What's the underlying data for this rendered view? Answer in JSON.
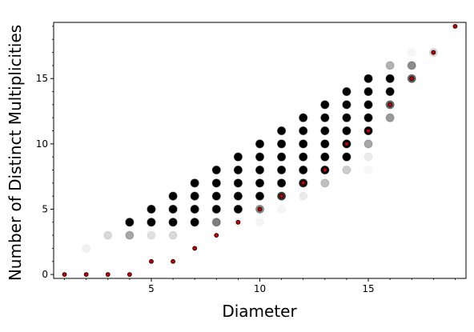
{
  "chart_data": {
    "type": "scatter",
    "title": "",
    "xlabel": "Diameter",
    "ylabel": "Number of Distinct Multiplicities",
    "xlim": [
      0.5,
      19.5
    ],
    "ylim": [
      -0.3,
      19.3
    ],
    "x_major_ticks": [
      5,
      10,
      15
    ],
    "y_major_ticks": [
      0,
      5,
      10,
      15
    ],
    "grid": false,
    "legend": "none",
    "colors": {
      "gray_marker": "#000000",
      "gray_marker_edge": "#000000",
      "red_marker_fill": "#cc0000",
      "red_marker_edge": "#000000"
    },
    "gray_points": [
      {
        "x": 2,
        "y": 2,
        "o": 0.06
      },
      {
        "x": 3,
        "y": 3,
        "o": 0.15
      },
      {
        "x": 4,
        "y": 3,
        "o": 0.35
      },
      {
        "x": 4,
        "y": 4,
        "o": 1.0
      },
      {
        "x": 5,
        "y": 3,
        "o": 0.12
      },
      {
        "x": 5,
        "y": 4,
        "o": 1.0
      },
      {
        "x": 5,
        "y": 5,
        "o": 1.0
      },
      {
        "x": 6,
        "y": 3,
        "o": 0.15
      },
      {
        "x": 6,
        "y": 4,
        "o": 1.0
      },
      {
        "x": 6,
        "y": 5,
        "o": 1.0
      },
      {
        "x": 6,
        "y": 6,
        "o": 1.0
      },
      {
        "x": 7,
        "y": 4,
        "o": 1.0
      },
      {
        "x": 7,
        "y": 5,
        "o": 1.0
      },
      {
        "x": 7,
        "y": 6,
        "o": 1.0
      },
      {
        "x": 7,
        "y": 7,
        "o": 1.0
      },
      {
        "x": 8,
        "y": 4,
        "o": 0.5
      },
      {
        "x": 8,
        "y": 5,
        "o": 1.0
      },
      {
        "x": 8,
        "y": 6,
        "o": 1.0
      },
      {
        "x": 8,
        "y": 7,
        "o": 1.0
      },
      {
        "x": 8,
        "y": 8,
        "o": 1.0
      },
      {
        "x": 9,
        "y": 4,
        "o": 0.05
      },
      {
        "x": 9,
        "y": 5,
        "o": 1.0
      },
      {
        "x": 9,
        "y": 6,
        "o": 1.0
      },
      {
        "x": 9,
        "y": 7,
        "o": 1.0
      },
      {
        "x": 9,
        "y": 8,
        "o": 1.0
      },
      {
        "x": 9,
        "y": 9,
        "o": 1.0
      },
      {
        "x": 10,
        "y": 4,
        "o": 0.04
      },
      {
        "x": 10,
        "y": 5,
        "o": 0.45
      },
      {
        "x": 10,
        "y": 6,
        "o": 1.0
      },
      {
        "x": 10,
        "y": 7,
        "o": 1.0
      },
      {
        "x": 10,
        "y": 8,
        "o": 1.0
      },
      {
        "x": 10,
        "y": 9,
        "o": 1.0
      },
      {
        "x": 10,
        "y": 10,
        "o": 1.0
      },
      {
        "x": 11,
        "y": 5,
        "o": 0.04
      },
      {
        "x": 11,
        "y": 6,
        "o": 0.8
      },
      {
        "x": 11,
        "y": 7,
        "o": 1.0
      },
      {
        "x": 11,
        "y": 8,
        "o": 1.0
      },
      {
        "x": 11,
        "y": 9,
        "o": 1.0
      },
      {
        "x": 11,
        "y": 10,
        "o": 1.0
      },
      {
        "x": 11,
        "y": 11,
        "o": 1.0
      },
      {
        "x": 12,
        "y": 6,
        "o": 0.08
      },
      {
        "x": 12,
        "y": 7,
        "o": 0.9
      },
      {
        "x": 12,
        "y": 8,
        "o": 1.0
      },
      {
        "x": 12,
        "y": 9,
        "o": 1.0
      },
      {
        "x": 12,
        "y": 10,
        "o": 1.0
      },
      {
        "x": 12,
        "y": 11,
        "o": 1.0
      },
      {
        "x": 12,
        "y": 12,
        "o": 1.0
      },
      {
        "x": 13,
        "y": 7,
        "o": 0.25
      },
      {
        "x": 13,
        "y": 8,
        "o": 1.0
      },
      {
        "x": 13,
        "y": 9,
        "o": 1.0
      },
      {
        "x": 13,
        "y": 10,
        "o": 1.0
      },
      {
        "x": 13,
        "y": 11,
        "o": 1.0
      },
      {
        "x": 13,
        "y": 12,
        "o": 1.0
      },
      {
        "x": 13,
        "y": 13,
        "o": 1.0
      },
      {
        "x": 14,
        "y": 8,
        "o": 0.2
      },
      {
        "x": 14,
        "y": 9,
        "o": 1.0
      },
      {
        "x": 14,
        "y": 10,
        "o": 1.0
      },
      {
        "x": 14,
        "y": 11,
        "o": 1.0
      },
      {
        "x": 14,
        "y": 12,
        "o": 1.0
      },
      {
        "x": 14,
        "y": 13,
        "o": 1.0
      },
      {
        "x": 14,
        "y": 14,
        "o": 1.0
      },
      {
        "x": 15,
        "y": 8,
        "o": 0.03
      },
      {
        "x": 15,
        "y": 9,
        "o": 0.08
      },
      {
        "x": 15,
        "y": 10,
        "o": 0.35
      },
      {
        "x": 15,
        "y": 11,
        "o": 1.0
      },
      {
        "x": 15,
        "y": 12,
        "o": 1.0
      },
      {
        "x": 15,
        "y": 13,
        "o": 1.0
      },
      {
        "x": 15,
        "y": 14,
        "o": 1.0
      },
      {
        "x": 15,
        "y": 15,
        "o": 1.0
      },
      {
        "x": 16,
        "y": 12,
        "o": 0.4
      },
      {
        "x": 16,
        "y": 13,
        "o": 0.6
      },
      {
        "x": 16,
        "y": 14,
        "o": 1.0
      },
      {
        "x": 16,
        "y": 15,
        "o": 1.0
      },
      {
        "x": 16,
        "y": 16,
        "o": 0.3
      },
      {
        "x": 17,
        "y": 15,
        "o": 0.6
      },
      {
        "x": 17,
        "y": 16,
        "o": 0.45
      },
      {
        "x": 17,
        "y": 17,
        "o": 0.04
      },
      {
        "x": 18,
        "y": 17,
        "o": 0.15
      }
    ],
    "red_points": [
      {
        "x": 1,
        "y": 0
      },
      {
        "x": 2,
        "y": 0
      },
      {
        "x": 3,
        "y": 0
      },
      {
        "x": 4,
        "y": 0
      },
      {
        "x": 5,
        "y": 1
      },
      {
        "x": 6,
        "y": 1
      },
      {
        "x": 7,
        "y": 2
      },
      {
        "x": 8,
        "y": 3
      },
      {
        "x": 9,
        "y": 4
      },
      {
        "x": 10,
        "y": 5
      },
      {
        "x": 11,
        "y": 6
      },
      {
        "x": 12,
        "y": 7
      },
      {
        "x": 13,
        "y": 8
      },
      {
        "x": 14,
        "y": 10
      },
      {
        "x": 15,
        "y": 11
      },
      {
        "x": 16,
        "y": 13
      },
      {
        "x": 17,
        "y": 15
      },
      {
        "x": 18,
        "y": 17
      },
      {
        "x": 19,
        "y": 19
      }
    ]
  }
}
